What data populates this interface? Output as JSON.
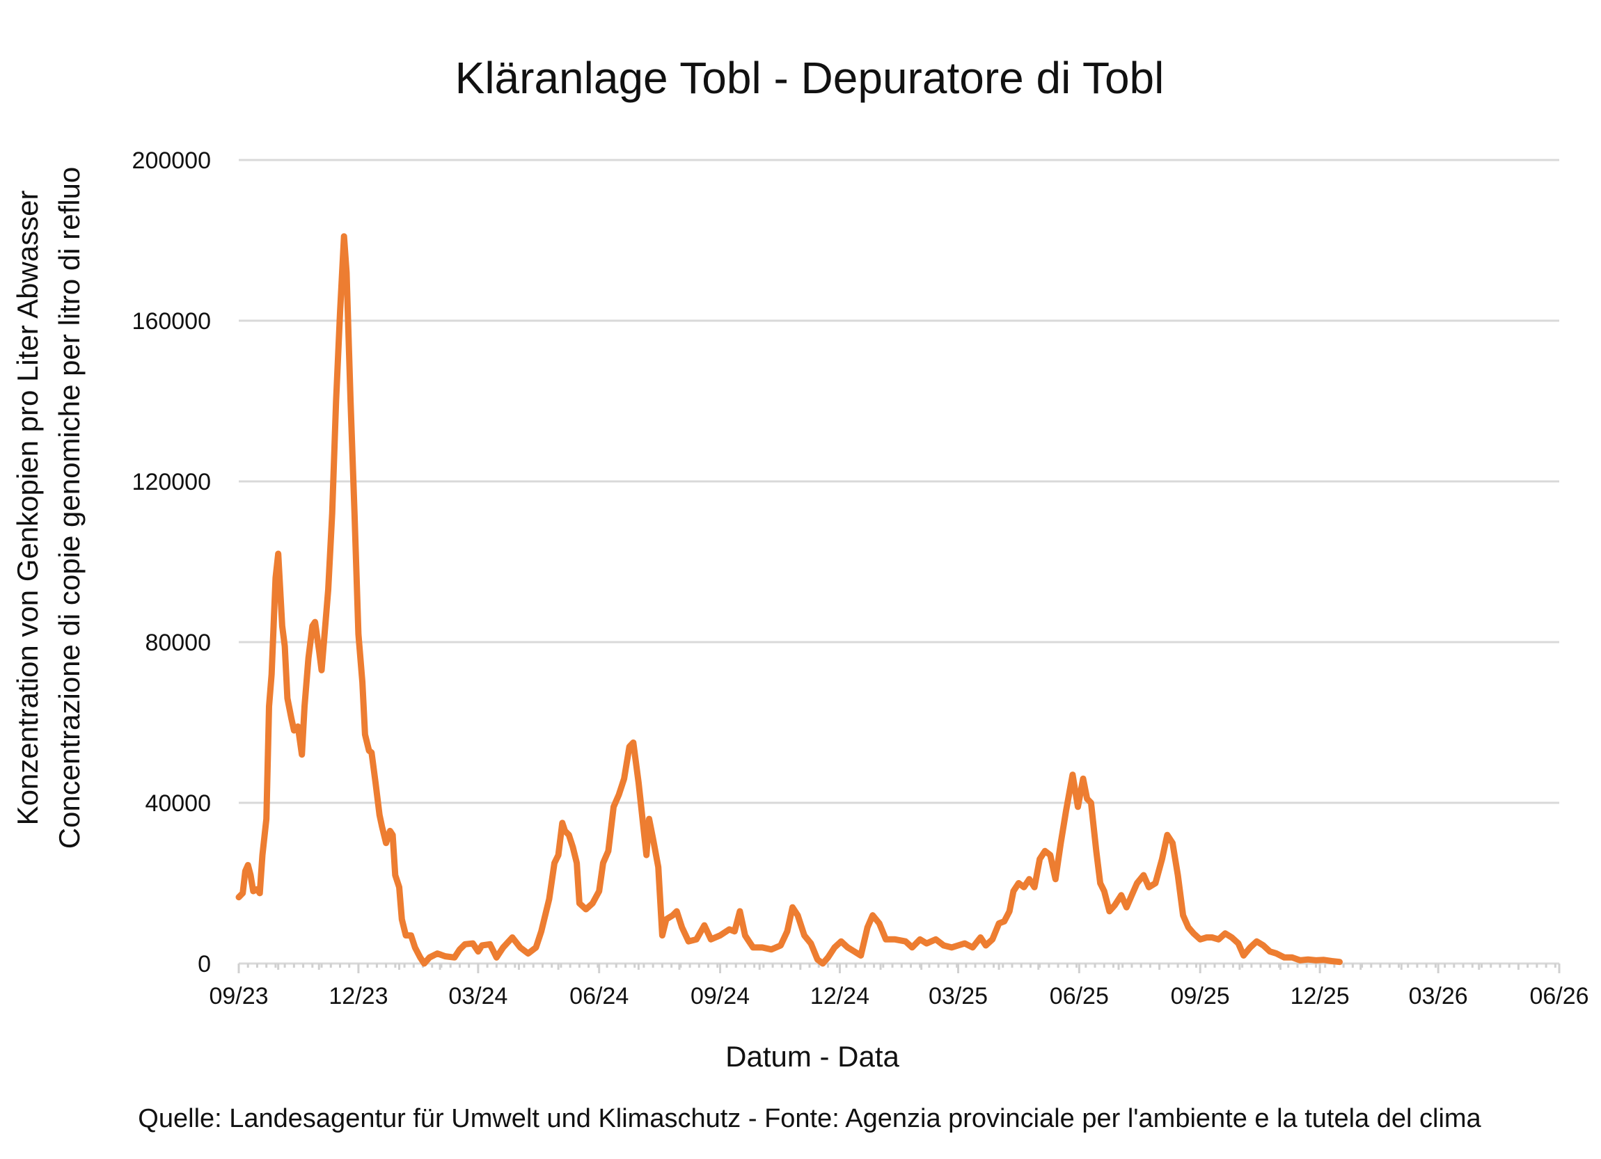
{
  "chart_data": {
    "type": "line",
    "title": "Kläranlage Tobl - Depuratore di Tobl",
    "xlabel": "Datum - Data",
    "ylabel_line1": "Konzentration von Genkopien pro Liter Abwasser",
    "ylabel_line2": "Concentrazione di copie genomiche  per litro di refluo",
    "source": "Quelle: Landesagentur für Umwelt und Klimaschutz - Fonte: Agenzia provinciale per l'ambiente e la tutela del clima",
    "ylim": [
      0,
      200000
    ],
    "yticks": [
      "0",
      "40000",
      "80000",
      "120000",
      "160000",
      "200000"
    ],
    "xlim": [
      "2023-09-01",
      "2026-06-01"
    ],
    "xticks": [
      "09/23",
      "12/23",
      "03/24",
      "06/24",
      "09/24",
      "12/24",
      "03/25",
      "06/25",
      "09/25",
      "12/25",
      "03/26",
      "06/26"
    ],
    "grid": true,
    "legend": "none",
    "series": [
      {
        "color": "#ED7D31",
        "points": [
          [
            "2023-09-01",
            16500
          ],
          [
            "2023-09-04",
            17500
          ],
          [
            "2023-09-06",
            23000
          ],
          [
            "2023-09-08",
            24500
          ],
          [
            "2023-09-10",
            22000
          ],
          [
            "2023-09-12",
            18000
          ],
          [
            "2023-09-15",
            18500
          ],
          [
            "2023-09-17",
            17500
          ],
          [
            "2023-09-19",
            27000
          ],
          [
            "2023-09-22",
            36000
          ],
          [
            "2023-09-24",
            64000
          ],
          [
            "2023-09-26",
            72000
          ],
          [
            "2023-09-29",
            96000
          ],
          [
            "2023-10-01",
            102000
          ],
          [
            "2023-10-04",
            84000
          ],
          [
            "2023-10-06",
            79000
          ],
          [
            "2023-10-08",
            66000
          ],
          [
            "2023-10-11",
            61000
          ],
          [
            "2023-10-13",
            58000
          ],
          [
            "2023-10-16",
            59000
          ],
          [
            "2023-10-19",
            52000
          ],
          [
            "2023-10-21",
            64000
          ],
          [
            "2023-10-24",
            76000
          ],
          [
            "2023-10-27",
            84000
          ],
          [
            "2023-10-29",
            85000
          ],
          [
            "2023-11-01",
            78000
          ],
          [
            "2023-11-03",
            73000
          ],
          [
            "2023-11-05",
            81000
          ],
          [
            "2023-11-08",
            93000
          ],
          [
            "2023-11-11",
            112000
          ],
          [
            "2023-11-14",
            140000
          ],
          [
            "2023-11-17",
            162000
          ],
          [
            "2023-11-20",
            181000
          ],
          [
            "2023-11-22",
            172000
          ],
          [
            "2023-11-25",
            140000
          ],
          [
            "2023-11-28",
            112000
          ],
          [
            "2023-12-01",
            82000
          ],
          [
            "2023-12-04",
            70000
          ],
          [
            "2023-12-06",
            57000
          ],
          [
            "2023-12-09",
            53000
          ],
          [
            "2023-12-11",
            52500
          ],
          [
            "2023-12-14",
            45000
          ],
          [
            "2023-12-17",
            37000
          ],
          [
            "2023-12-19",
            34000
          ],
          [
            "2023-12-22",
            30000
          ],
          [
            "2023-12-25",
            33000
          ],
          [
            "2023-12-27",
            32000
          ],
          [
            "2023-12-29",
            22000
          ],
          [
            "2024-01-01",
            19000
          ],
          [
            "2024-01-03",
            11000
          ],
          [
            "2024-01-06",
            7000
          ],
          [
            "2024-01-10",
            7000
          ],
          [
            "2024-01-13",
            4000
          ],
          [
            "2024-01-17",
            1500
          ],
          [
            "2024-01-20",
            0
          ],
          [
            "2024-01-24",
            1500
          ],
          [
            "2024-01-30",
            2500
          ],
          [
            "2024-02-05",
            1800
          ],
          [
            "2024-02-12",
            1500
          ],
          [
            "2024-02-16",
            3500
          ],
          [
            "2024-02-20",
            4800
          ],
          [
            "2024-02-26",
            5000
          ],
          [
            "2024-03-01",
            3000
          ],
          [
            "2024-03-04",
            4500
          ],
          [
            "2024-03-10",
            4800
          ],
          [
            "2024-03-15",
            1500
          ],
          [
            "2024-03-20",
            4000
          ],
          [
            "2024-03-27",
            6500
          ],
          [
            "2024-04-02",
            4000
          ],
          [
            "2024-04-08",
            2500
          ],
          [
            "2024-04-14",
            4000
          ],
          [
            "2024-04-18",
            8000
          ],
          [
            "2024-04-24",
            16000
          ],
          [
            "2024-04-28",
            25000
          ],
          [
            "2024-05-01",
            27000
          ],
          [
            "2024-05-04",
            35000
          ],
          [
            "2024-05-06",
            33000
          ],
          [
            "2024-05-09",
            32000
          ],
          [
            "2024-05-12",
            29000
          ],
          [
            "2024-05-15",
            25000
          ],
          [
            "2024-05-17",
            15000
          ],
          [
            "2024-05-22",
            13500
          ],
          [
            "2024-05-27",
            15000
          ],
          [
            "2024-06-01",
            18000
          ],
          [
            "2024-06-04",
            25000
          ],
          [
            "2024-06-08",
            28000
          ],
          [
            "2024-06-12",
            39000
          ],
          [
            "2024-06-16",
            42000
          ],
          [
            "2024-06-20",
            46000
          ],
          [
            "2024-06-24",
            54000
          ],
          [
            "2024-06-27",
            55000
          ],
          [
            "2024-07-01",
            45000
          ],
          [
            "2024-07-05",
            33000
          ],
          [
            "2024-07-07",
            27000
          ],
          [
            "2024-07-09",
            36000
          ],
          [
            "2024-07-12",
            31000
          ],
          [
            "2024-07-16",
            24000
          ],
          [
            "2024-07-19",
            7000
          ],
          [
            "2024-07-22",
            11000
          ],
          [
            "2024-07-27",
            12000
          ],
          [
            "2024-07-30",
            13000
          ],
          [
            "2024-08-03",
            9000
          ],
          [
            "2024-08-08",
            5500
          ],
          [
            "2024-08-14",
            6000
          ],
          [
            "2024-08-20",
            9500
          ],
          [
            "2024-08-25",
            6000
          ],
          [
            "2024-09-01",
            7000
          ],
          [
            "2024-09-08",
            8500
          ],
          [
            "2024-09-12",
            8000
          ],
          [
            "2024-09-16",
            13000
          ],
          [
            "2024-09-20",
            7000
          ],
          [
            "2024-09-26",
            4000
          ],
          [
            "2024-10-03",
            4000
          ],
          [
            "2024-10-10",
            3500
          ],
          [
            "2024-10-17",
            4500
          ],
          [
            "2024-10-22",
            8000
          ],
          [
            "2024-10-26",
            14000
          ],
          [
            "2024-10-30",
            12000
          ],
          [
            "2024-11-04",
            7000
          ],
          [
            "2024-11-09",
            5000
          ],
          [
            "2024-11-14",
            1000
          ],
          [
            "2024-11-18",
            0
          ],
          [
            "2024-11-22",
            1500
          ],
          [
            "2024-11-27",
            4000
          ],
          [
            "2024-12-02",
            5500
          ],
          [
            "2024-12-07",
            4000
          ],
          [
            "2024-12-12",
            3000
          ],
          [
            "2024-12-17",
            2000
          ],
          [
            "2024-12-22",
            9000
          ],
          [
            "2024-12-26",
            12000
          ],
          [
            "2024-12-31",
            10000
          ],
          [
            "2025-01-05",
            6000
          ],
          [
            "2025-01-12",
            6000
          ],
          [
            "2025-01-20",
            5500
          ],
          [
            "2025-01-25",
            4000
          ],
          [
            "2025-01-31",
            6000
          ],
          [
            "2025-02-05",
            5000
          ],
          [
            "2025-02-12",
            6000
          ],
          [
            "2025-02-18",
            4500
          ],
          [
            "2025-02-24",
            4000
          ],
          [
            "2025-03-01",
            4500
          ],
          [
            "2025-03-06",
            5000
          ],
          [
            "2025-03-12",
            4000
          ],
          [
            "2025-03-18",
            6500
          ],
          [
            "2025-03-22",
            4500
          ],
          [
            "2025-03-27",
            6000
          ],
          [
            "2025-04-01",
            10000
          ],
          [
            "2025-04-05",
            10500
          ],
          [
            "2025-04-09",
            13000
          ],
          [
            "2025-04-12",
            18000
          ],
          [
            "2025-04-16",
            20000
          ],
          [
            "2025-04-20",
            19000
          ],
          [
            "2025-04-24",
            21000
          ],
          [
            "2025-04-28",
            19000
          ],
          [
            "2025-05-02",
            26000
          ],
          [
            "2025-05-06",
            28000
          ],
          [
            "2025-05-10",
            27000
          ],
          [
            "2025-05-14",
            21000
          ],
          [
            "2025-05-18",
            30000
          ],
          [
            "2025-05-22",
            38000
          ],
          [
            "2025-05-27",
            47000
          ],
          [
            "2025-05-31",
            39000
          ],
          [
            "2025-06-04",
            46000
          ],
          [
            "2025-06-07",
            41000
          ],
          [
            "2025-06-10",
            40000
          ],
          [
            "2025-06-14",
            28000
          ],
          [
            "2025-06-17",
            20000
          ],
          [
            "2025-06-20",
            18000
          ],
          [
            "2025-06-24",
            13000
          ],
          [
            "2025-06-28",
            14500
          ],
          [
            "2025-07-03",
            17000
          ],
          [
            "2025-07-07",
            14000
          ],
          [
            "2025-07-11",
            17000
          ],
          [
            "2025-07-15",
            20000
          ],
          [
            "2025-07-20",
            22000
          ],
          [
            "2025-07-24",
            19000
          ],
          [
            "2025-07-29",
            20000
          ],
          [
            "2025-08-03",
            26000
          ],
          [
            "2025-08-07",
            32000
          ],
          [
            "2025-08-11",
            30000
          ],
          [
            "2025-08-15",
            22000
          ],
          [
            "2025-08-19",
            12000
          ],
          [
            "2025-08-23",
            9000
          ],
          [
            "2025-08-27",
            7500
          ],
          [
            "2025-09-01",
            6000
          ],
          [
            "2025-09-06",
            6500
          ],
          [
            "2025-09-10",
            6500
          ],
          [
            "2025-09-15",
            6000
          ],
          [
            "2025-09-20",
            7500
          ],
          [
            "2025-09-25",
            6500
          ],
          [
            "2025-09-30",
            5000
          ],
          [
            "2025-10-04",
            2000
          ],
          [
            "2025-10-09",
            4000
          ],
          [
            "2025-10-14",
            5500
          ],
          [
            "2025-10-19",
            4500
          ],
          [
            "2025-10-24",
            3000
          ],
          [
            "2025-10-29",
            2500
          ],
          [
            "2025-11-04",
            1500
          ],
          [
            "2025-11-10",
            1500
          ],
          [
            "2025-11-16",
            800
          ],
          [
            "2025-11-22",
            1000
          ],
          [
            "2025-11-28",
            800
          ],
          [
            "2025-12-04",
            900
          ],
          [
            "2025-12-10",
            600
          ],
          [
            "2025-12-16",
            400
          ]
        ]
      }
    ]
  }
}
